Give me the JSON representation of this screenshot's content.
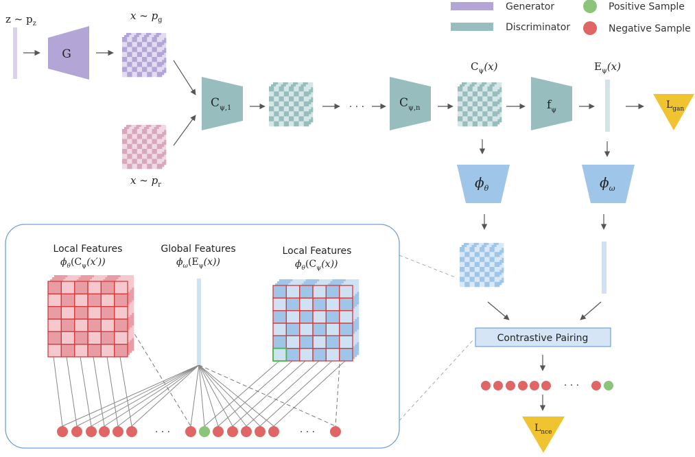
{
  "legend": {
    "generator": "Generator",
    "discriminator": "Discriminator",
    "positive": "Positive Sample",
    "negative": "Negative Sample"
  },
  "colors": {
    "generator": "#b4a5d7",
    "discriminator": "#98bdbf",
    "phi": "#9fc5e8",
    "positive": "#8cc57a",
    "negative": "#e06666",
    "loss": "#f0c330",
    "pairing_fill": "#d5e5f5",
    "pairing_stroke": "#6fa0d8",
    "panel_stroke": "#6fa0d8"
  },
  "labels": {
    "z_base": "z ~ p",
    "z_sub": "z",
    "g": "G",
    "xg_base": "x ~ p",
    "xg_sub": "g",
    "xr_base": "x ~ p",
    "xr_sub": "r",
    "c1_base": "C",
    "c1_sub": "ψ,1",
    "cn_base": "C",
    "cn_sub": "ψ,n",
    "ellipsis": "· · ·",
    "cx_base": "C",
    "cx_sub": "ψ",
    "cx_arg": "(x)",
    "f_base": "f",
    "f_sub": "ψ",
    "ex_base": "E",
    "ex_sub": "ψ",
    "ex_arg": "(x)",
    "lgan_base": "L",
    "lgan_sub": "gan",
    "phi_theta_base": "ϕ",
    "phi_theta_sub": "θ",
    "phi_omega_base": "ϕ",
    "phi_omega_sub": "ω",
    "contrastive": "Contrastive Pairing",
    "lnce_base": "L",
    "lnce_sub": "nce"
  },
  "panel": {
    "local1_title": "Local Features",
    "local1_phi": "ϕ",
    "local1_phi_sub": "θ",
    "local1_mid": "(C",
    "local1_mid_sub": "ψ",
    "local1_arg": "(x′))",
    "global_title": "Global Features",
    "global_phi": "ϕ",
    "global_phi_sub": "ω",
    "global_mid": "(E",
    "global_mid_sub": "ψ",
    "global_arg": "(x))",
    "local2_title": "Local Features",
    "local2_phi": "ϕ",
    "local2_phi_sub": "θ",
    "local2_mid": "(C",
    "local2_mid_sub": "ψ",
    "local2_arg": "(x))",
    "ellipsis": "· · ·"
  }
}
